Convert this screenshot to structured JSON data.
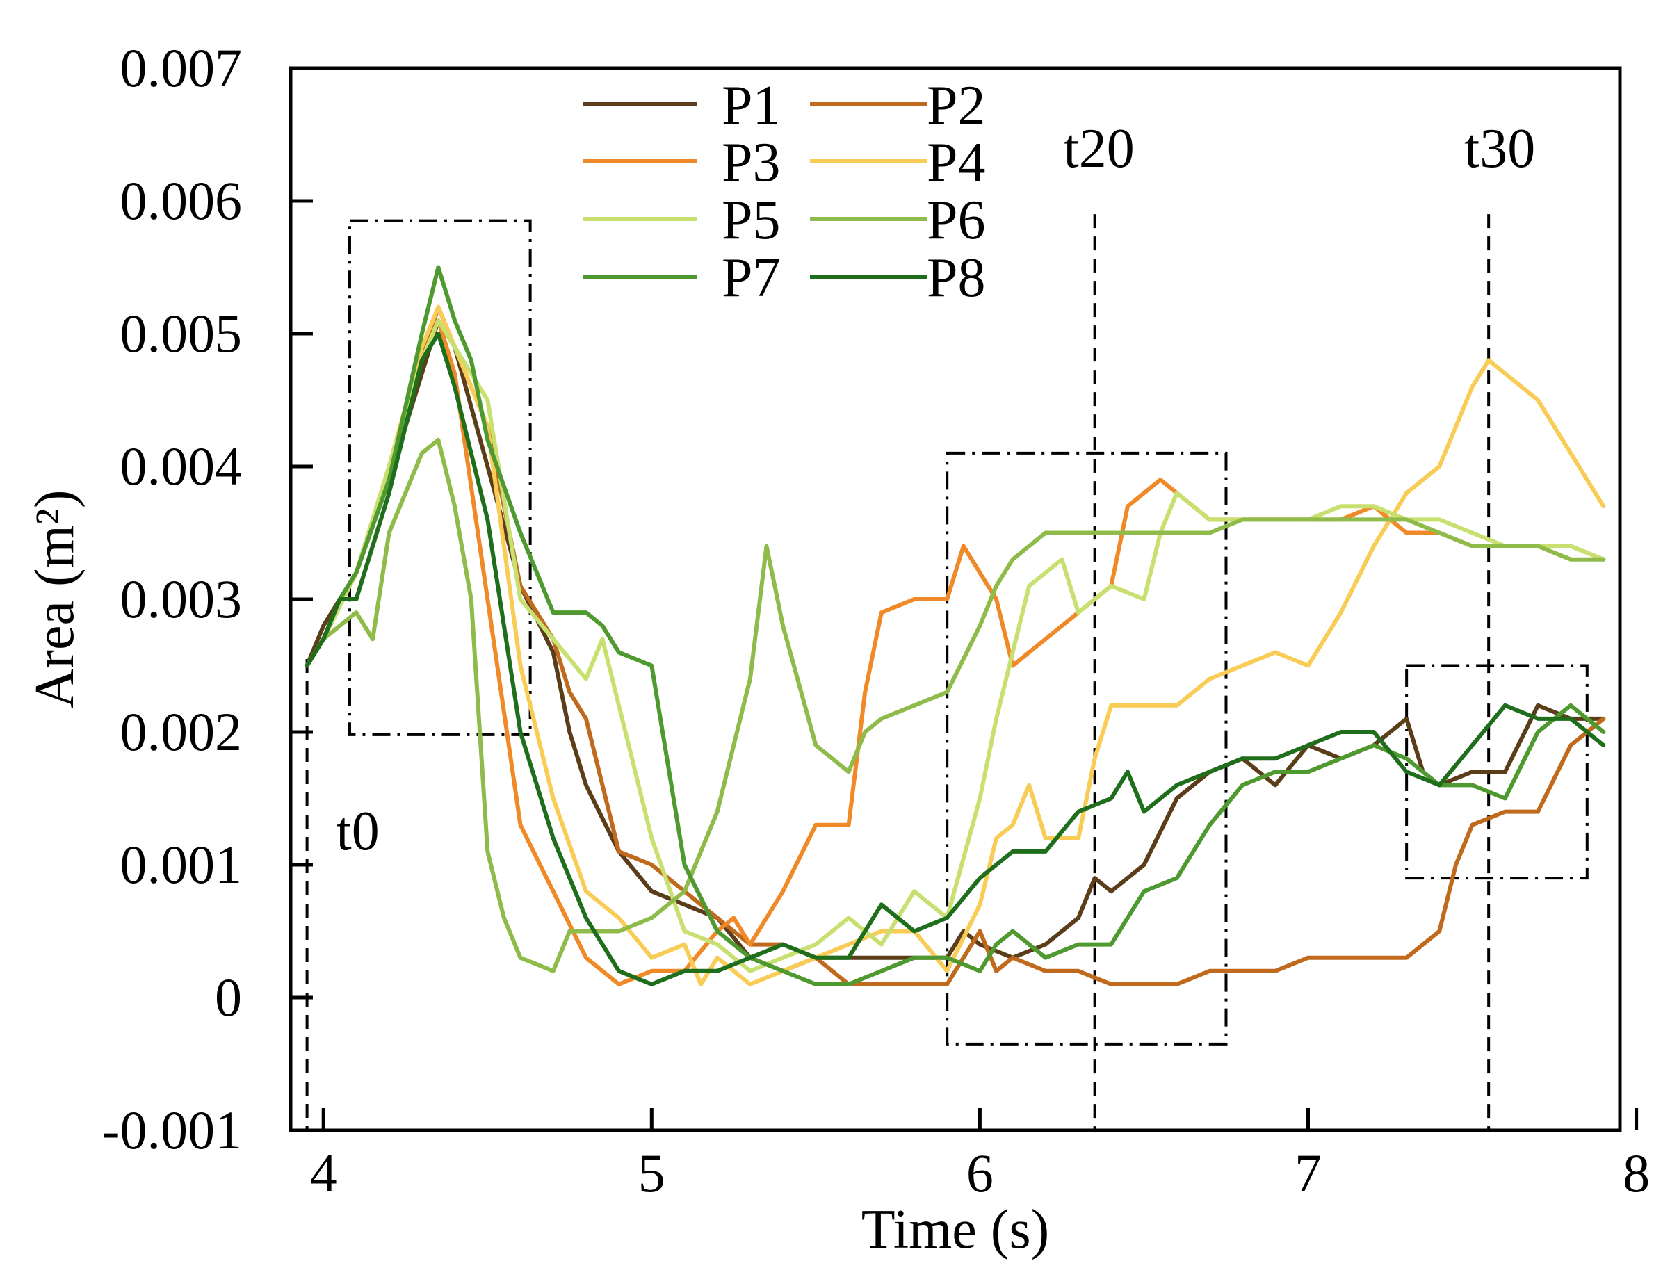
{
  "chart_data": {
    "type": "line",
    "title": "",
    "xlabel": "Time (s)",
    "ylabel": "Area (m²)",
    "xlim": [
      3.9,
      7.95
    ],
    "ylim": [
      -0.001,
      0.007
    ],
    "xticks": [
      4,
      5,
      6,
      7,
      8
    ],
    "yticks": [
      -0.001,
      0,
      0.001,
      0.002,
      0.003,
      0.004,
      0.005,
      0.006,
      0.007
    ],
    "xtick_labels": [
      "4",
      "5",
      "6",
      "7",
      "8"
    ],
    "ytick_labels": [
      "-0.001",
      "0",
      "0.001",
      "0.002",
      "0.003",
      "0.004",
      "0.005",
      "0.006",
      "0.007"
    ],
    "grid": false,
    "legend_position": "top-center",
    "series": [
      {
        "name": "P1",
        "color": "#5c3d1a",
        "x": [
          3.95,
          4.0,
          4.1,
          4.2,
          4.3,
          4.35,
          4.4,
          4.5,
          4.6,
          4.7,
          4.75,
          4.8,
          4.9,
          5.0,
          5.1,
          5.2,
          5.3,
          5.4,
          5.5,
          5.6,
          5.7,
          5.8,
          5.9,
          5.95,
          6.0,
          6.1,
          6.2,
          6.3,
          6.35,
          6.4,
          6.5,
          6.6,
          6.7,
          6.8,
          6.9,
          7.0,
          7.1,
          7.2,
          7.3,
          7.35,
          7.4,
          7.5,
          7.6,
          7.7,
          7.8,
          7.9
        ],
        "y": [
          0.0025,
          0.0028,
          0.0032,
          0.0039,
          0.0047,
          0.0051,
          0.0049,
          0.004,
          0.0031,
          0.0026,
          0.002,
          0.0016,
          0.0011,
          0.0008,
          0.0007,
          0.0006,
          0.0003,
          0.0002,
          0.0003,
          0.0003,
          0.0003,
          0.0003,
          0.0003,
          0.0005,
          0.0004,
          0.0003,
          0.0004,
          0.0006,
          0.0009,
          0.0008,
          0.001,
          0.0015,
          0.0017,
          0.0018,
          0.0016,
          0.0019,
          0.0018,
          0.0019,
          0.0021,
          0.0017,
          0.0016,
          0.0017,
          0.0017,
          0.0022,
          0.0021,
          0.0021
        ]
      },
      {
        "name": "P2",
        "color": "#c06a1e",
        "x": [
          3.95,
          4.0,
          4.1,
          4.2,
          4.3,
          4.35,
          4.4,
          4.5,
          4.6,
          4.7,
          4.75,
          4.8,
          4.9,
          5.0,
          5.1,
          5.2,
          5.3,
          5.4,
          5.5,
          5.6,
          5.7,
          5.8,
          5.9,
          6.0,
          6.05,
          6.1,
          6.2,
          6.3,
          6.4,
          6.5,
          6.6,
          6.7,
          6.8,
          6.9,
          7.0,
          7.1,
          7.2,
          7.3,
          7.4,
          7.45,
          7.5,
          7.6,
          7.7,
          7.8,
          7.9
        ],
        "y": [
          0.0025,
          0.0027,
          0.0032,
          0.0039,
          0.0048,
          0.0052,
          0.0049,
          0.0043,
          0.0031,
          0.0027,
          0.0023,
          0.0021,
          0.0011,
          0.001,
          0.0008,
          0.0006,
          0.0004,
          0.0004,
          0.0003,
          0.0001,
          0.0001,
          0.0001,
          0.0001,
          0.0005,
          0.0002,
          0.0003,
          0.0002,
          0.0002,
          0.0001,
          0.0001,
          0.0001,
          0.0002,
          0.0002,
          0.0002,
          0.0003,
          0.0003,
          0.0003,
          0.0003,
          0.0005,
          0.001,
          0.0013,
          0.0014,
          0.0014,
          0.0019,
          0.0021
        ]
      },
      {
        "name": "P3",
        "color": "#f08a28",
        "x": [
          3.95,
          4.0,
          4.1,
          4.2,
          4.3,
          4.35,
          4.4,
          4.5,
          4.6,
          4.7,
          4.8,
          4.9,
          5.0,
          5.1,
          5.2,
          5.25,
          5.3,
          5.4,
          5.5,
          5.6,
          5.65,
          5.7,
          5.8,
          5.9,
          5.95,
          6.0,
          6.05,
          6.1,
          6.2,
          6.3,
          6.4,
          6.45,
          6.5,
          6.55,
          6.6,
          6.7,
          6.8,
          6.9,
          7.0,
          7.1,
          7.2,
          7.3,
          7.4,
          7.5,
          7.6,
          7.7,
          7.8,
          7.9
        ],
        "y": [
          0.0025,
          0.0027,
          0.0032,
          0.004,
          0.0048,
          0.0051,
          0.0047,
          0.003,
          0.0013,
          0.0008,
          0.0003,
          0.0001,
          0.0002,
          0.0002,
          0.0005,
          0.0006,
          0.0004,
          0.0008,
          0.0013,
          0.0013,
          0.0023,
          0.0029,
          0.003,
          0.003,
          0.0034,
          0.0032,
          0.003,
          0.0025,
          0.0027,
          0.0029,
          0.0031,
          0.0037,
          0.0038,
          0.0039,
          0.0038,
          0.0036,
          0.0036,
          0.0036,
          0.0036,
          0.0036,
          0.0037,
          0.0035,
          0.0035,
          0.0034,
          0.0034,
          0.0034,
          0.0034,
          0.0033
        ]
      },
      {
        "name": "P4",
        "color": "#f8cc55",
        "x": [
          3.95,
          4.0,
          4.1,
          4.2,
          4.3,
          4.35,
          4.4,
          4.5,
          4.6,
          4.7,
          4.8,
          4.9,
          5.0,
          5.1,
          5.15,
          5.2,
          5.3,
          5.4,
          5.5,
          5.6,
          5.7,
          5.8,
          5.9,
          6.0,
          6.05,
          6.1,
          6.15,
          6.2,
          6.25,
          6.3,
          6.35,
          6.4,
          6.5,
          6.6,
          6.7,
          6.8,
          6.9,
          7.0,
          7.1,
          7.2,
          7.3,
          7.4,
          7.5,
          7.55,
          7.6,
          7.7,
          7.8,
          7.9
        ],
        "y": [
          0.0025,
          0.0027,
          0.0032,
          0.004,
          0.0049,
          0.0052,
          0.0049,
          0.0043,
          0.0025,
          0.0015,
          0.0008,
          0.0006,
          0.0003,
          0.0004,
          0.0001,
          0.0003,
          0.0001,
          0.0002,
          0.0003,
          0.0004,
          0.0005,
          0.0005,
          0.0002,
          0.0007,
          0.0012,
          0.0013,
          0.0016,
          0.0012,
          0.0012,
          0.0012,
          0.0018,
          0.0022,
          0.0022,
          0.0022,
          0.0024,
          0.0025,
          0.0026,
          0.0025,
          0.0029,
          0.0034,
          0.0038,
          0.004,
          0.0046,
          0.0048,
          0.0047,
          0.0045,
          0.0041,
          0.0037
        ]
      },
      {
        "name": "P5",
        "color": "#c8e070",
        "x": [
          3.95,
          4.0,
          4.1,
          4.2,
          4.3,
          4.35,
          4.4,
          4.5,
          4.6,
          4.7,
          4.8,
          4.85,
          4.9,
          5.0,
          5.1,
          5.2,
          5.3,
          5.4,
          5.5,
          5.6,
          5.7,
          5.8,
          5.9,
          6.0,
          6.05,
          6.1,
          6.15,
          6.2,
          6.25,
          6.3,
          6.35,
          6.4,
          6.5,
          6.55,
          6.6,
          6.7,
          6.8,
          6.9,
          7.0,
          7.1,
          7.2,
          7.3,
          7.4,
          7.5,
          7.6,
          7.7,
          7.8,
          7.9
        ],
        "y": [
          0.0025,
          0.0027,
          0.0032,
          0.004,
          0.0048,
          0.0051,
          0.0049,
          0.0045,
          0.003,
          0.0027,
          0.0024,
          0.0027,
          0.0022,
          0.0012,
          0.0005,
          0.0004,
          0.0002,
          0.0003,
          0.0004,
          0.0006,
          0.0004,
          0.0008,
          0.0006,
          0.0015,
          0.0021,
          0.0026,
          0.0031,
          0.0032,
          0.0033,
          0.0029,
          0.003,
          0.0031,
          0.003,
          0.0035,
          0.0038,
          0.0036,
          0.0036,
          0.0036,
          0.0036,
          0.0037,
          0.0037,
          0.0036,
          0.0036,
          0.0035,
          0.0034,
          0.0034,
          0.0034,
          0.0033
        ]
      },
      {
        "name": "P6",
        "color": "#8fbb4a",
        "x": [
          3.95,
          4.0,
          4.1,
          4.15,
          4.2,
          4.3,
          4.35,
          4.4,
          4.45,
          4.5,
          4.55,
          4.6,
          4.7,
          4.75,
          4.8,
          4.9,
          5.0,
          5.1,
          5.2,
          5.3,
          5.35,
          5.4,
          5.5,
          5.6,
          5.65,
          5.7,
          5.8,
          5.9,
          6.0,
          6.05,
          6.1,
          6.15,
          6.2,
          6.3,
          6.4,
          6.5,
          6.6,
          6.7,
          6.8,
          6.9,
          7.0,
          7.1,
          7.2,
          7.3,
          7.4,
          7.5,
          7.6,
          7.7,
          7.8,
          7.9
        ],
        "y": [
          0.0025,
          0.0027,
          0.0029,
          0.0027,
          0.0035,
          0.0041,
          0.0042,
          0.0037,
          0.003,
          0.0011,
          0.0006,
          0.0003,
          0.0002,
          0.0005,
          0.0005,
          0.0005,
          0.0006,
          0.0008,
          0.0014,
          0.0024,
          0.0034,
          0.0028,
          0.0019,
          0.0017,
          0.002,
          0.0021,
          0.0022,
          0.0023,
          0.0028,
          0.0031,
          0.0033,
          0.0034,
          0.0035,
          0.0035,
          0.0035,
          0.0035,
          0.0035,
          0.0035,
          0.0036,
          0.0036,
          0.0036,
          0.0036,
          0.0036,
          0.0036,
          0.0035,
          0.0034,
          0.0034,
          0.0034,
          0.0033,
          0.0033
        ]
      },
      {
        "name": "P7",
        "color": "#4f9a30",
        "x": [
          3.95,
          4.0,
          4.05,
          4.1,
          4.2,
          4.3,
          4.35,
          4.4,
          4.45,
          4.5,
          4.6,
          4.7,
          4.75,
          4.8,
          4.85,
          4.9,
          5.0,
          5.1,
          5.2,
          5.3,
          5.4,
          5.5,
          5.6,
          5.7,
          5.8,
          5.9,
          6.0,
          6.05,
          6.1,
          6.15,
          6.2,
          6.3,
          6.4,
          6.5,
          6.6,
          6.7,
          6.8,
          6.9,
          7.0,
          7.1,
          7.2,
          7.3,
          7.4,
          7.5,
          7.6,
          7.7,
          7.8,
          7.9
        ],
        "y": [
          0.0025,
          0.0027,
          0.003,
          0.0032,
          0.0039,
          0.005,
          0.0055,
          0.0051,
          0.0048,
          0.0042,
          0.0035,
          0.0029,
          0.0029,
          0.0029,
          0.0028,
          0.0026,
          0.0025,
          0.001,
          0.0005,
          0.0003,
          0.0002,
          0.0001,
          0.0001,
          0.0002,
          0.0003,
          0.0003,
          0.0002,
          0.0004,
          0.0005,
          0.0004,
          0.0003,
          0.0004,
          0.0004,
          0.0008,
          0.0009,
          0.0013,
          0.0016,
          0.0017,
          0.0017,
          0.0018,
          0.0019,
          0.0018,
          0.0016,
          0.0016,
          0.0015,
          0.002,
          0.0022,
          0.002
        ]
      },
      {
        "name": "P8",
        "color": "#1e6e1c",
        "x": [
          3.95,
          4.0,
          4.05,
          4.1,
          4.2,
          4.3,
          4.35,
          4.4,
          4.5,
          4.6,
          4.7,
          4.8,
          4.9,
          5.0,
          5.1,
          5.2,
          5.3,
          5.4,
          5.5,
          5.6,
          5.7,
          5.8,
          5.9,
          6.0,
          6.1,
          6.2,
          6.3,
          6.4,
          6.45,
          6.5,
          6.6,
          6.7,
          6.8,
          6.9,
          7.0,
          7.1,
          7.2,
          7.3,
          7.4,
          7.5,
          7.6,
          7.7,
          7.8,
          7.9
        ],
        "y": [
          0.0025,
          0.0027,
          0.003,
          0.003,
          0.0038,
          0.0048,
          0.005,
          0.0046,
          0.0036,
          0.002,
          0.0012,
          0.0006,
          0.0002,
          0.0001,
          0.0002,
          0.0002,
          0.0003,
          0.0004,
          0.0003,
          0.0003,
          0.0007,
          0.0005,
          0.0006,
          0.0009,
          0.0011,
          0.0011,
          0.0014,
          0.0015,
          0.0017,
          0.0014,
          0.0016,
          0.0017,
          0.0018,
          0.0018,
          0.0019,
          0.002,
          0.002,
          0.0017,
          0.0016,
          0.0019,
          0.0022,
          0.0021,
          0.0021,
          0.0019
        ]
      }
    ],
    "annotations": {
      "t0": {
        "label": "t0",
        "x": 3.95
      },
      "t20": {
        "label": "t20",
        "x": 6.35
      },
      "t30": {
        "label": "t30",
        "x": 7.55
      }
    },
    "highlight_boxes": [
      {
        "x0": 4.08,
        "x1": 4.63,
        "y0": 0.00198,
        "y1": 0.00585
      },
      {
        "x0": 5.9,
        "x1": 6.75,
        "y0": -0.00035,
        "y1": 0.0041
      },
      {
        "x0": 7.3,
        "x1": 7.85,
        "y0": 0.0009,
        "y1": 0.0025
      }
    ]
  }
}
